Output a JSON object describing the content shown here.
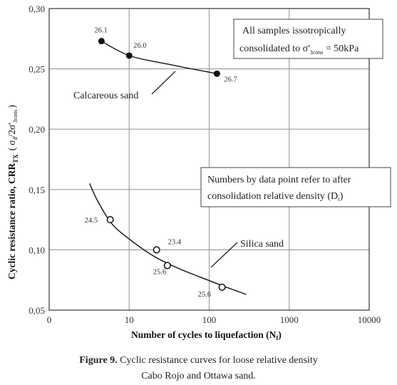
{
  "chart_data": {
    "type": "scatter",
    "xlabel": "Number of cycles to liquefaction (N",
    "xlabel_sub": "f",
    "xlabel_end": ")",
    "ylabel_main": "Cyclic resistance ratio, CRR",
    "ylabel_sub": "TX",
    "ylabel_paren_open": "(",
    "ylabel_sigma_d": "σ",
    "ylabel_d": "d",
    "ylabel_slash": "/2σ'",
    "ylabel_3cons": "3cons",
    "ylabel_paren_close": ")",
    "x_scale": "log",
    "x_tick_labels": [
      "0",
      "10",
      "100",
      "1000",
      "10000"
    ],
    "y_tick_labels": [
      "0,05",
      "0,10",
      "0,15",
      "0,20",
      "0,25",
      "0,30"
    ],
    "y_ticks": [
      0.05,
      0.1,
      0.15,
      0.2,
      0.25,
      0.3
    ],
    "ylim": [
      0.05,
      0.3
    ],
    "grid": true,
    "series": [
      {
        "name": "Calcareous sand",
        "marker": "filled-circle",
        "points": [
          {
            "x": 4.5,
            "y": 0.273,
            "label": "26.1"
          },
          {
            "x": 10,
            "y": 0.261,
            "label": "26.0"
          },
          {
            "x": 125,
            "y": 0.246,
            "label": "26.7"
          }
        ],
        "curve": [
          [
            4.5,
            0.273
          ],
          [
            10,
            0.261
          ],
          [
            30,
            0.254
          ],
          [
            125,
            0.246
          ]
        ]
      },
      {
        "name": "Silica sand",
        "marker": "open-circle",
        "points": [
          {
            "x": 5.8,
            "y": 0.125,
            "label": "24.5"
          },
          {
            "x": 22,
            "y": 0.1,
            "label": "23.4"
          },
          {
            "x": 30,
            "y": 0.087,
            "label": "25.6"
          },
          {
            "x": 145,
            "y": 0.069,
            "label": "25.6"
          }
        ],
        "curve": [
          [
            3.2,
            0.155
          ],
          [
            4,
            0.141
          ],
          [
            6,
            0.122
          ],
          [
            10,
            0.109
          ],
          [
            20,
            0.095
          ],
          [
            40,
            0.085
          ],
          [
            80,
            0.077
          ],
          [
            150,
            0.07
          ],
          [
            290,
            0.063
          ]
        ]
      }
    ],
    "annotations": {
      "calcareous_label": "Calcareous sand",
      "silica_label": "Silica sand",
      "box1_line1": "All samples issotropically",
      "box1_line2_pre": "consolidated to σ'",
      "box1_line2_sub": "3cons",
      "box1_line2_post": " = 50kPa",
      "box2_line1": "Numbers by data point refer to after",
      "box2_line2_pre": "consolidation relative density (D",
      "box2_line2_sub": "r",
      "box2_line2_post": ")"
    }
  },
  "caption": {
    "figure_label": "Figure 9.",
    "line1": " Cyclic resistance curves for loose relative density",
    "line2": "Cabo Rojo and Ottawa sand."
  }
}
